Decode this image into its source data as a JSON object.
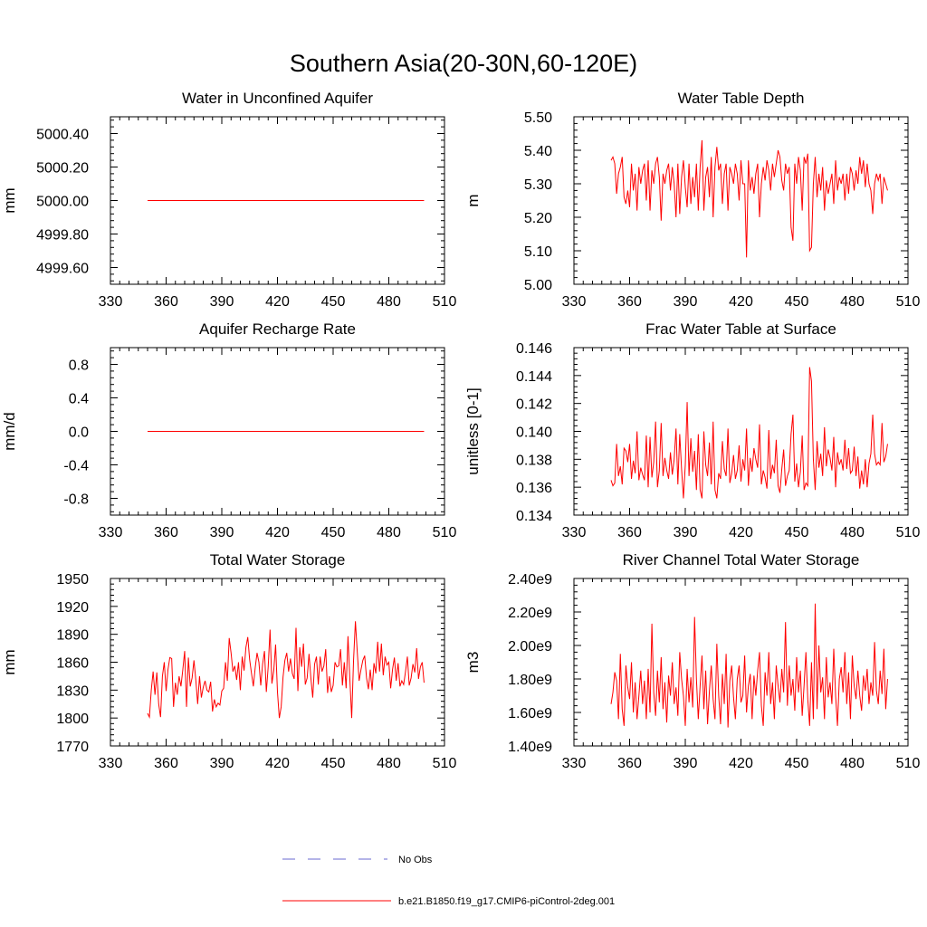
{
  "figure_title": "Southern Asia(20-30N,60-120E)",
  "legend": {
    "obs_label": "No Obs",
    "obs_color": "#6a6ad0",
    "model_label": "b.e21.B1850.f19_g17.CMIP6-piControl-2deg.001",
    "model_color": "#ff0000"
  },
  "chart_data": [
    {
      "type": "line",
      "title": "Water in Unconfined Aquifer",
      "ylabel": "mm",
      "xlim": [
        330,
        510
      ],
      "xticks": [
        330,
        360,
        390,
        420,
        450,
        480,
        510
      ],
      "xtick_labels": [
        "330",
        "360",
        "390",
        "420",
        "450",
        "480",
        "510"
      ],
      "ylim": [
        4999.5,
        5000.5
      ],
      "yticks": [
        4999.6,
        4999.8,
        5000.0,
        5000.2,
        5000.4
      ],
      "ytick_labels": [
        "4999.60",
        "4999.80",
        "5000.00",
        "5000.20",
        "5000.40"
      ],
      "series": [
        {
          "name": "b.e21.B1850.f19_g17.CMIP6-piControl-2deg.001",
          "x_start": 350,
          "x_end": 499,
          "values": [
            5000.0,
            5000.0
          ]
        }
      ]
    },
    {
      "type": "line",
      "title": "Water Table Depth",
      "ylabel": "m",
      "xlim": [
        330,
        510
      ],
      "xticks": [
        330,
        360,
        390,
        420,
        450,
        480,
        510
      ],
      "xtick_labels": [
        "330",
        "360",
        "390",
        "420",
        "450",
        "480",
        "510"
      ],
      "ylim": [
        5.0,
        5.5
      ],
      "yticks": [
        5.0,
        5.1,
        5.2,
        5.3,
        5.4,
        5.5
      ],
      "ytick_labels": [
        "5.00",
        "5.10",
        "5.20",
        "5.30",
        "5.40",
        "5.50"
      ],
      "series": [
        {
          "name": "b.e21.B1850.f19_g17.CMIP6-piControl-2deg.001",
          "x_start": 350,
          "x_end": 499,
          "values": [
            5.37,
            5.38,
            5.36,
            5.27,
            5.33,
            5.35,
            5.38,
            5.26,
            5.24,
            5.28,
            5.23,
            5.36,
            5.28,
            5.33,
            5.22,
            5.35,
            5.3,
            5.34,
            5.36,
            5.25,
            5.37,
            5.22,
            5.34,
            5.3,
            5.36,
            5.38,
            5.32,
            5.19,
            5.33,
            5.3,
            5.34,
            5.36,
            5.28,
            5.35,
            5.3,
            5.2,
            5.36,
            5.21,
            5.32,
            5.37,
            5.29,
            5.23,
            5.36,
            5.24,
            5.32,
            5.26,
            5.36,
            5.22,
            5.35,
            5.43,
            5.22,
            5.32,
            5.35,
            5.26,
            5.38,
            5.2,
            5.35,
            5.41,
            5.34,
            5.36,
            5.24,
            5.33,
            5.36,
            5.22,
            5.35,
            5.33,
            5.3,
            5.36,
            5.33,
            5.25,
            5.37,
            5.3,
            5.3,
            5.08,
            5.37,
            5.28,
            5.32,
            5.27,
            5.33,
            5.36,
            5.2,
            5.3,
            5.35,
            5.31,
            5.37,
            5.34,
            5.28,
            5.36,
            5.32,
            5.36,
            5.4,
            5.38,
            5.31,
            5.28,
            5.36,
            5.33,
            5.35,
            5.17,
            5.13,
            5.36,
            5.3,
            5.38,
            5.34,
            5.22,
            5.38,
            5.36,
            5.39,
            5.1,
            5.11,
            5.3,
            5.38,
            5.26,
            5.33,
            5.28,
            5.35,
            5.22,
            5.31,
            5.27,
            5.3,
            5.33,
            5.24,
            5.37,
            5.28,
            5.32,
            5.3,
            5.33,
            5.25,
            5.33,
            5.27,
            5.35,
            5.33,
            5.28,
            5.34,
            5.3,
            5.38,
            5.33,
            5.37,
            5.29,
            5.36,
            5.3,
            5.28,
            5.21,
            5.3,
            5.33,
            5.31,
            5.33,
            5.24,
            5.32,
            5.3,
            5.28
          ]
        }
      ]
    },
    {
      "type": "line",
      "title": "Aquifer Recharge Rate",
      "ylabel": "mm/d",
      "xlim": [
        330,
        510
      ],
      "xticks": [
        330,
        360,
        390,
        420,
        450,
        480,
        510
      ],
      "xtick_labels": [
        "330",
        "360",
        "390",
        "420",
        "450",
        "480",
        "510"
      ],
      "ylim": [
        -1.0,
        1.0
      ],
      "yticks": [
        -0.8,
        -0.4,
        0.0,
        0.4,
        0.8
      ],
      "ytick_labels": [
        "-0.8",
        "-0.4",
        "0.0",
        "0.4",
        "0.8"
      ],
      "series": [
        {
          "name": "b.e21.B1850.f19_g17.CMIP6-piControl-2deg.001",
          "x_start": 350,
          "x_end": 499,
          "values": [
            0.0,
            0.0
          ]
        }
      ]
    },
    {
      "type": "line",
      "title": "Frac Water Table at Surface",
      "ylabel": "unitless [0-1]",
      "xlim": [
        330,
        510
      ],
      "xticks": [
        330,
        360,
        390,
        420,
        450,
        480,
        510
      ],
      "xtick_labels": [
        "330",
        "360",
        "390",
        "420",
        "450",
        "480",
        "510"
      ],
      "ylim": [
        0.134,
        0.146
      ],
      "yticks": [
        0.134,
        0.136,
        0.138,
        0.14,
        0.142,
        0.144,
        0.146
      ],
      "ytick_labels": [
        "0.134",
        "0.136",
        "0.138",
        "0.140",
        "0.142",
        "0.144",
        "0.146"
      ],
      "series": [
        {
          "name": "b.e21.B1850.f19_g17.CMIP6-piControl-2deg.001",
          "x_start": 350,
          "x_end": 499,
          "values": [
            0.1365,
            0.1361,
            0.1363,
            0.1391,
            0.1368,
            0.1375,
            0.1362,
            0.1388,
            0.1386,
            0.1378,
            0.1391,
            0.1366,
            0.1379,
            0.137,
            0.14,
            0.1365,
            0.1374,
            0.1369,
            0.1365,
            0.1397,
            0.136,
            0.1396,
            0.1367,
            0.1378,
            0.1407,
            0.136,
            0.1372,
            0.1406,
            0.1368,
            0.1381,
            0.1372,
            0.1366,
            0.1385,
            0.1369,
            0.138,
            0.1402,
            0.1362,
            0.1398,
            0.1373,
            0.1352,
            0.1376,
            0.1421,
            0.1368,
            0.1395,
            0.1371,
            0.1386,
            0.1358,
            0.1398,
            0.1358,
            0.1352,
            0.14,
            0.1376,
            0.1368,
            0.1392,
            0.1362,
            0.1407,
            0.1358,
            0.1352,
            0.137,
            0.1366,
            0.1393,
            0.1373,
            0.1368,
            0.1402,
            0.1363,
            0.137,
            0.1383,
            0.1366,
            0.1372,
            0.139,
            0.1364,
            0.138,
            0.1372,
            0.1402,
            0.1361,
            0.1381,
            0.1371,
            0.1388,
            0.138,
            0.1374,
            0.1405,
            0.1362,
            0.1372,
            0.1367,
            0.1359,
            0.1401,
            0.1366,
            0.1376,
            0.137,
            0.1394,
            0.1361,
            0.1356,
            0.1373,
            0.1387,
            0.1361,
            0.1368,
            0.1372,
            0.1398,
            0.1412,
            0.1364,
            0.1377,
            0.136,
            0.1371,
            0.1397,
            0.1358,
            0.1363,
            0.1361,
            0.1446,
            0.1436,
            0.138,
            0.1358,
            0.1393,
            0.1374,
            0.1384,
            0.1368,
            0.1403,
            0.1375,
            0.1387,
            0.1381,
            0.1372,
            0.1396,
            0.136,
            0.1385,
            0.1376,
            0.138,
            0.1372,
            0.1394,
            0.1373,
            0.1388,
            0.137,
            0.1372,
            0.1389,
            0.1368,
            0.1382,
            0.1359,
            0.1372,
            0.1362,
            0.138,
            0.136,
            0.1377,
            0.1384,
            0.1412,
            0.1384,
            0.1376,
            0.1378,
            0.1376,
            0.1406,
            0.1378,
            0.1382,
            0.1391
          ]
        }
      ]
    },
    {
      "type": "line",
      "title": "Total Water Storage",
      "ylabel": "mm",
      "xlim": [
        330,
        510
      ],
      "xticks": [
        330,
        360,
        390,
        420,
        450,
        480,
        510
      ],
      "xtick_labels": [
        "330",
        "360",
        "390",
        "420",
        "450",
        "480",
        "510"
      ],
      "ylim": [
        1770,
        1950
      ],
      "yticks": [
        1770,
        1800,
        1830,
        1860,
        1890,
        1920,
        1950
      ],
      "ytick_labels": [
        "1770",
        "1800",
        "1830",
        "1860",
        "1890",
        "1920",
        "1950"
      ],
      "series": [
        {
          "name": "b.e21.B1850.f19_g17.CMIP6-piControl-2deg.001",
          "x_start": 350,
          "x_end": 499,
          "values": [
            1805,
            1801,
            1830,
            1850,
            1825,
            1849,
            1815,
            1801,
            1845,
            1860,
            1829,
            1852,
            1865,
            1864,
            1812,
            1838,
            1825,
            1845,
            1834,
            1852,
            1872,
            1812,
            1865,
            1834,
            1843,
            1862,
            1841,
            1815,
            1845,
            1822,
            1833,
            1840,
            1830,
            1828,
            1839,
            1807,
            1820,
            1812,
            1816,
            1814,
            1829,
            1832,
            1860,
            1840,
            1886,
            1870,
            1850,
            1856,
            1841,
            1860,
            1830,
            1866,
            1851,
            1876,
            1887,
            1863,
            1848,
            1834,
            1854,
            1870,
            1860,
            1835,
            1858,
            1872,
            1828,
            1855,
            1895,
            1837,
            1851,
            1879,
            1828,
            1800,
            1812,
            1844,
            1862,
            1870,
            1850,
            1864,
            1848,
            1842,
            1897,
            1829,
            1876,
            1855,
            1880,
            1836,
            1843,
            1869,
            1843,
            1822,
            1858,
            1866,
            1836,
            1866,
            1850,
            1856,
            1874,
            1827,
            1845,
            1828,
            1835,
            1860,
            1855,
            1856,
            1874,
            1835,
            1860,
            1832,
            1888,
            1842,
            1800,
            1862,
            1904,
            1871,
            1840,
            1852,
            1862,
            1867,
            1843,
            1831,
            1852,
            1830,
            1859,
            1848,
            1882,
            1850,
            1880,
            1846,
            1866,
            1857,
            1860,
            1832,
            1852,
            1865,
            1840,
            1859,
            1834,
            1840,
            1836,
            1850,
            1866,
            1835,
            1843,
            1858,
            1849,
            1875,
            1842,
            1855,
            1860,
            1838
          ]
        }
      ]
    },
    {
      "type": "line",
      "title": "River Channel Total Water Storage",
      "ylabel": "m3",
      "xlim": [
        330,
        510
      ],
      "xticks": [
        330,
        360,
        390,
        420,
        450,
        480,
        510
      ],
      "xtick_labels": [
        "330",
        "360",
        "390",
        "420",
        "450",
        "480",
        "510"
      ],
      "ylim": [
        1400000000,
        2400000000
      ],
      "yticks": [
        1400000000,
        1600000000,
        1800000000,
        2000000000,
        2200000000,
        2400000000
      ],
      "ytick_labels": [
        "1.40e9",
        "1.60e9",
        "1.80e9",
        "2.00e9",
        "2.20e9",
        "2.40e9"
      ],
      "series": [
        {
          "name": "b.e21.B1850.f19_g17.CMIP6-piControl-2deg.001",
          "x_start": 350,
          "x_end": 499,
          "values": [
            1650000000,
            1720000000,
            1840000000,
            1790000000,
            1560000000,
            1950000000,
            1620000000,
            1520000000,
            1880000000,
            1750000000,
            1680000000,
            1900000000,
            1600000000,
            1780000000,
            1560000000,
            1700000000,
            1850000000,
            1650000000,
            1790000000,
            1560000000,
            1860000000,
            1600000000,
            2130000000,
            1720000000,
            1580000000,
            1850000000,
            1660000000,
            1930000000,
            1620000000,
            1780000000,
            1540000000,
            1820000000,
            1700000000,
            1900000000,
            1650000000,
            1750000000,
            1580000000,
            1960000000,
            1800000000,
            1700000000,
            1520000000,
            1860000000,
            1660000000,
            1810000000,
            1630000000,
            2170000000,
            1800000000,
            1560000000,
            1760000000,
            1940000000,
            1620000000,
            1850000000,
            1530000000,
            1730000000,
            1880000000,
            1680000000,
            1560000000,
            2010000000,
            1700000000,
            1530000000,
            1830000000,
            1650000000,
            1950000000,
            1510000000,
            1790000000,
            1880000000,
            1690000000,
            1560000000,
            1800000000,
            1880000000,
            1660000000,
            1700000000,
            1940000000,
            1600000000,
            1760000000,
            1830000000,
            1560000000,
            1820000000,
            1700000000,
            1850000000,
            1960000000,
            1640000000,
            1520000000,
            1840000000,
            1700000000,
            1960000000,
            1650000000,
            1780000000,
            1560000000,
            1880000000,
            1760000000,
            1660000000,
            1860000000,
            1720000000,
            2140000000,
            1640000000,
            1880000000,
            1700000000,
            1800000000,
            1610000000,
            1930000000,
            1720000000,
            1850000000,
            1580000000,
            1760000000,
            1960000000,
            1680000000,
            1520000000,
            1900000000,
            1560000000,
            2250000000,
            1620000000,
            2000000000,
            1720000000,
            1810000000,
            1560000000,
            1930000000,
            1690000000,
            1780000000,
            1650000000,
            1980000000,
            1700000000,
            1520000000,
            1800000000,
            1870000000,
            1720000000,
            1960000000,
            1650000000,
            1840000000,
            1560000000,
            1940000000,
            1760000000,
            1680000000,
            1850000000,
            1700000000,
            1610000000,
            1820000000,
            1730000000,
            1860000000,
            1650000000,
            1780000000,
            1700000000,
            2020000000,
            1730000000,
            1650000000,
            1850000000,
            1710000000,
            1980000000,
            1620000000,
            1800000000
          ]
        }
      ]
    }
  ]
}
